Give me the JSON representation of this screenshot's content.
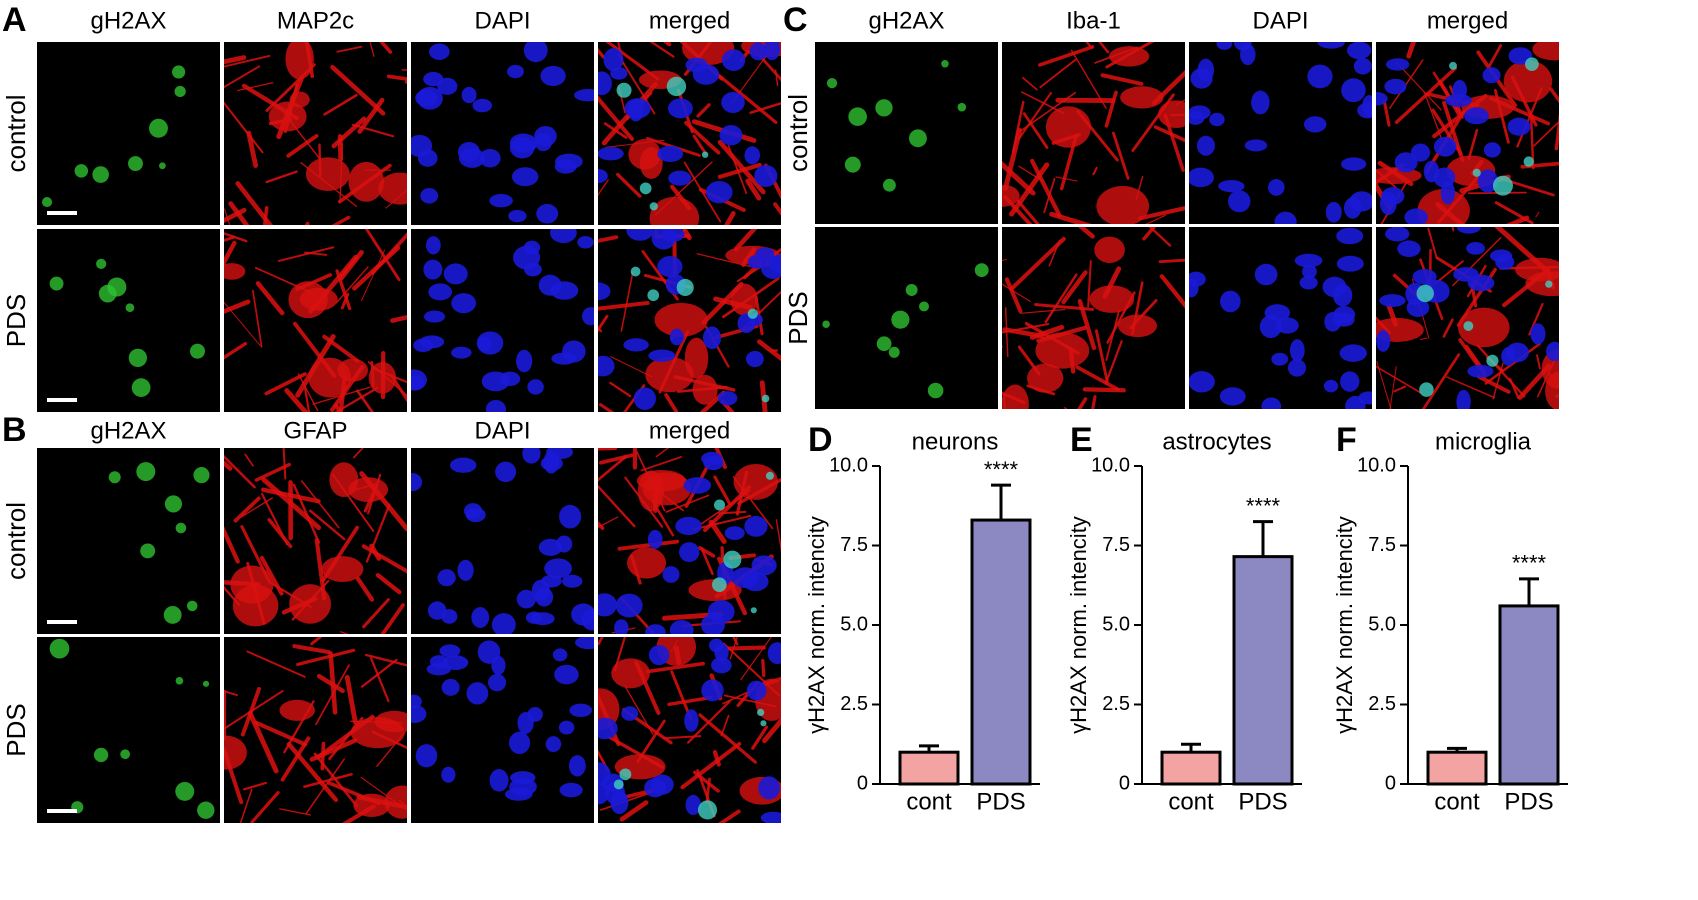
{
  "figure_panels": [
    {
      "label": "A",
      "columns": [
        "gH2AX",
        "MAP2c",
        "DAPI",
        "merged"
      ],
      "rows": [
        "control",
        "PDS"
      ]
    },
    {
      "label": "B",
      "columns": [
        "gH2AX",
        "GFAP",
        "DAPI",
        "merged"
      ],
      "rows": [
        "control",
        "PDS"
      ]
    },
    {
      "label": "C",
      "columns": [
        "gH2AX",
        "Iba-1",
        "DAPI",
        "merged"
      ],
      "rows": [
        "control",
        "PDS"
      ]
    }
  ],
  "chart_data": [
    {
      "type": "bar",
      "panel_label": "D",
      "title": "neurons",
      "ylabel": "γH2AX norm. intencity",
      "categories": [
        "cont",
        "PDS"
      ],
      "values": [
        1.0,
        8.3
      ],
      "errors": [
        0.2,
        1.1
      ],
      "colors": [
        "#f4a3a3",
        "#8c89c2"
      ],
      "significance": "****",
      "ylim": [
        0,
        10
      ],
      "yticks": [
        0,
        2.5,
        {
          "value": 5,
          "label": "5.0"
        },
        7.5,
        {
          "value": 10,
          "label": "10.0"
        }
      ]
    },
    {
      "type": "bar",
      "panel_label": "E",
      "title": "astrocytes",
      "ylabel": "γH2AX norm. intencity",
      "categories": [
        "cont",
        "PDS"
      ],
      "values": [
        1.0,
        7.15
      ],
      "errors": [
        0.25,
        1.1
      ],
      "colors": [
        "#f4a3a3",
        "#8c89c2"
      ],
      "significance": "****",
      "ylim": [
        0,
        10
      ],
      "yticks": [
        0,
        2.5,
        {
          "value": 5,
          "label": "5.0"
        },
        7.5,
        {
          "value": 10,
          "label": "10.0"
        }
      ]
    },
    {
      "type": "bar",
      "panel_label": "F",
      "title": "microglia",
      "ylabel": "γH2AX norm. intencity",
      "categories": [
        "cont",
        "PDS"
      ],
      "values": [
        1.0,
        5.6
      ],
      "errors": [
        0.12,
        0.85
      ],
      "colors": [
        "#f4a3a3",
        "#8c89c2"
      ],
      "significance": "****",
      "ylim": [
        0,
        10
      ],
      "yticks": [
        0,
        2.5,
        {
          "value": 5,
          "label": "5.0"
        },
        7.5,
        {
          "value": 10,
          "label": "10.0"
        }
      ]
    }
  ]
}
